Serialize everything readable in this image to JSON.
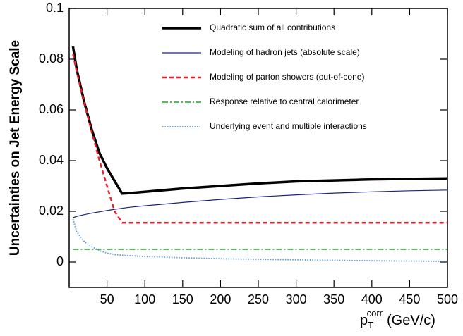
{
  "chart_data": {
    "type": "line",
    "y_label": "Uncertainties on Jet Energy Scale",
    "x_label": {
      "base": "p",
      "sub": "T",
      "sup": "corr",
      "unit": "(GeV/c)"
    },
    "x": [
      5,
      10,
      20,
      30,
      40,
      50,
      60,
      70,
      80,
      100,
      150,
      200,
      250,
      300,
      350,
      400,
      450,
      500
    ],
    "series": [
      {
        "name": "Quadratic sum of all contributions",
        "color": "#000000",
        "width": 3.5,
        "dash": "solid",
        "values": [
          0.085,
          0.076,
          0.063,
          0.052,
          0.043,
          0.037,
          0.032,
          0.027,
          0.0272,
          0.0277,
          0.029,
          0.03,
          0.031,
          0.0318,
          0.0322,
          0.0326,
          0.0328,
          0.033
        ]
      },
      {
        "name": "Modeling of hadron jets (absolute scale)",
        "color": "#1a237e",
        "width": 1.2,
        "dash": "solid",
        "values": [
          0.0175,
          0.018,
          0.0187,
          0.0193,
          0.0198,
          0.0203,
          0.0208,
          0.0212,
          0.0216,
          0.0222,
          0.0235,
          0.0247,
          0.0257,
          0.0265,
          0.0272,
          0.0277,
          0.0281,
          0.0284
        ]
      },
      {
        "name": "Modeling of parton showers (out-of-cone)",
        "color": "#e8202a",
        "width": 2.5,
        "dash": "dashed",
        "values": [
          0.082,
          0.075,
          0.063,
          0.051,
          0.04,
          0.03,
          0.02,
          0.0155,
          0.0155,
          0.0155,
          0.0155,
          0.0155,
          0.0155,
          0.0155,
          0.0155,
          0.0155,
          0.0155,
          0.0155
        ]
      },
      {
        "name": "Response relative to central calorimeter",
        "color": "#3cb043",
        "width": 1.8,
        "dash": "dashdot",
        "values": [
          0.005,
          0.005,
          0.005,
          0.005,
          0.005,
          0.005,
          0.005,
          0.005,
          0.005,
          0.005,
          0.005,
          0.005,
          0.005,
          0.005,
          0.005,
          0.005,
          0.005,
          0.005
        ]
      },
      {
        "name": "Underlying event and multiple interactions",
        "color": "#5b9bd5",
        "width": 1.8,
        "dash": "dotted",
        "values": [
          0.017,
          0.012,
          0.008,
          0.006,
          0.0045,
          0.0035,
          0.003,
          0.0027,
          0.0025,
          0.0022,
          0.0017,
          0.0013,
          0.0011,
          0.0009,
          0.0007,
          0.0005,
          0.0004,
          0.0003
        ]
      }
    ],
    "xlim": [
      0,
      500
    ],
    "ylim": [
      -0.01,
      0.1
    ],
    "xticks": [
      50,
      100,
      150,
      200,
      250,
      300,
      350,
      400,
      450,
      500
    ],
    "yticks": [
      0,
      0.02,
      0.04,
      0.06,
      0.08,
      0.1
    ],
    "grid": false,
    "legend": "top"
  }
}
